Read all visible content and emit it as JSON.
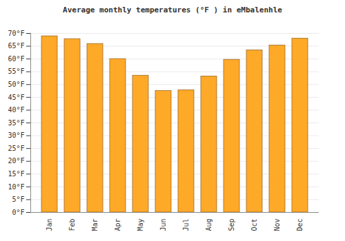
{
  "chart_data": {
    "type": "bar",
    "title": "Average monthly temperatures (°F ) in eMbalenhle",
    "categories": [
      "Jan",
      "Feb",
      "Mar",
      "Apr",
      "May",
      "Jun",
      "Jul",
      "Aug",
      "Sep",
      "Oct",
      "Nov",
      "Dec"
    ],
    "values": [
      68.9,
      67.8,
      65.9,
      60.0,
      53.5,
      47.5,
      47.8,
      53.2,
      59.7,
      63.4,
      65.3,
      68.0
    ],
    "color": "#ffa928",
    "ylim": [
      0,
      70
    ],
    "yticks": [
      {
        "value": 0,
        "label": "0°F"
      },
      {
        "value": 5,
        "label": "5°F"
      },
      {
        "value": 10,
        "label": "10°F"
      },
      {
        "value": 15,
        "label": "15°F"
      },
      {
        "value": 20,
        "label": "20°F"
      },
      {
        "value": 25,
        "label": "25°F"
      },
      {
        "value": 30,
        "label": "30°F"
      },
      {
        "value": 35,
        "label": "35°F"
      },
      {
        "value": 40,
        "label": "40°F"
      },
      {
        "value": 45,
        "label": "45°F"
      },
      {
        "value": 50,
        "label": "50°F"
      },
      {
        "value": 55,
        "label": "55°F"
      },
      {
        "value": 60,
        "label": "60°F"
      },
      {
        "value": 65,
        "label": "65°F"
      },
      {
        "value": 70,
        "label": "70°F"
      }
    ],
    "grid": true
  }
}
